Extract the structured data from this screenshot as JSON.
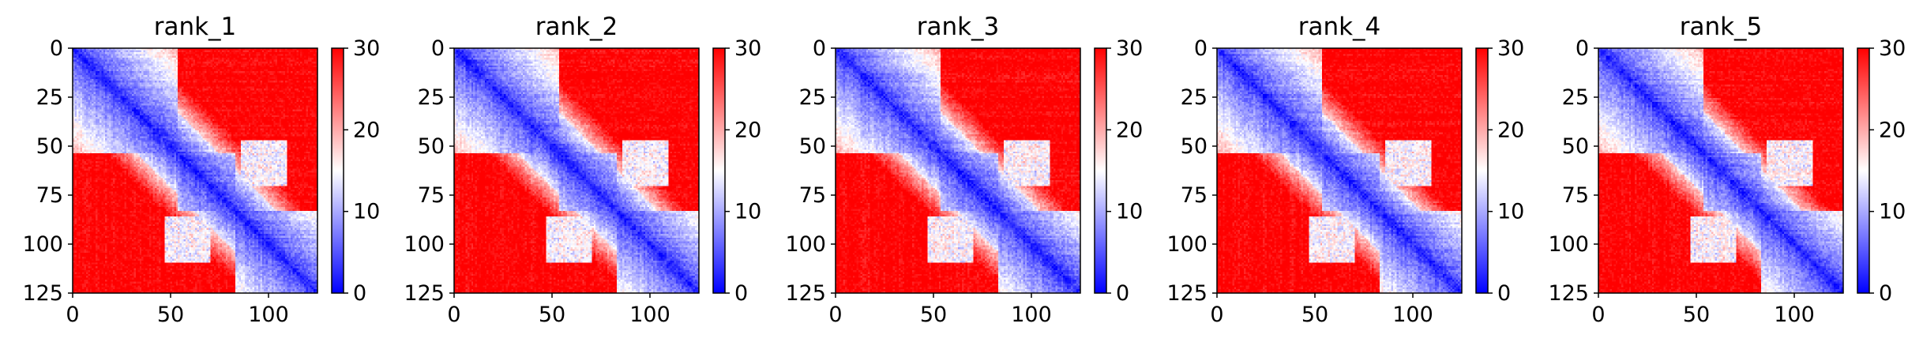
{
  "chart_data": [
    {
      "type": "heatmap",
      "title": "rank_1",
      "xlim": [
        0,
        125
      ],
      "ylim": [
        125,
        0
      ],
      "xticks": [
        "0",
        "50",
        "100"
      ],
      "yticks": [
        "0",
        "25",
        "50",
        "75",
        "100",
        "125"
      ],
      "colorbar": {
        "ticks": [
          "0",
          "10",
          "20",
          "30"
        ],
        "range": [
          0,
          30
        ]
      },
      "grid": false,
      "matrix_size": 128,
      "description_values": {
        "diagonal": 0,
        "background": 30,
        "domains": [
          [
            0,
            55
          ],
          [
            55,
            85
          ],
          [
            85,
            128
          ]
        ]
      }
    },
    {
      "type": "heatmap",
      "title": "rank_2",
      "xlim": [
        0,
        125
      ],
      "ylim": [
        125,
        0
      ],
      "xticks": [
        "0",
        "50",
        "100"
      ],
      "yticks": [
        "0",
        "25",
        "50",
        "75",
        "100",
        "125"
      ],
      "colorbar": {
        "ticks": [
          "0",
          "10",
          "20",
          "30"
        ],
        "range": [
          0,
          30
        ]
      },
      "grid": false,
      "matrix_size": 128,
      "description_values": {
        "diagonal": 0,
        "background": 30,
        "domains": [
          [
            0,
            55
          ],
          [
            55,
            85
          ],
          [
            85,
            128
          ]
        ]
      }
    },
    {
      "type": "heatmap",
      "title": "rank_3",
      "xlim": [
        0,
        125
      ],
      "ylim": [
        125,
        0
      ],
      "xticks": [
        "0",
        "50",
        "100"
      ],
      "yticks": [
        "0",
        "25",
        "50",
        "75",
        "100",
        "125"
      ],
      "colorbar": {
        "ticks": [
          "0",
          "10",
          "20",
          "30"
        ],
        "range": [
          0,
          30
        ]
      },
      "grid": false,
      "matrix_size": 128,
      "description_values": {
        "diagonal": 0,
        "background": 30,
        "domains": [
          [
            0,
            55
          ],
          [
            55,
            85
          ],
          [
            85,
            128
          ]
        ]
      }
    },
    {
      "type": "heatmap",
      "title": "rank_4",
      "xlim": [
        0,
        125
      ],
      "ylim": [
        125,
        0
      ],
      "xticks": [
        "0",
        "50",
        "100"
      ],
      "yticks": [
        "0",
        "25",
        "50",
        "75",
        "100",
        "125"
      ],
      "colorbar": {
        "ticks": [
          "0",
          "10",
          "20",
          "30"
        ],
        "range": [
          0,
          30
        ]
      },
      "grid": false,
      "matrix_size": 128,
      "description_values": {
        "diagonal": 0,
        "background": 30,
        "domains": [
          [
            0,
            55
          ],
          [
            55,
            85
          ],
          [
            85,
            128
          ]
        ]
      }
    },
    {
      "type": "heatmap",
      "title": "rank_5",
      "xlim": [
        0,
        125
      ],
      "ylim": [
        125,
        0
      ],
      "xticks": [
        "0",
        "50",
        "100"
      ],
      "yticks": [
        "0",
        "25",
        "50",
        "75",
        "100",
        "125"
      ],
      "colorbar": {
        "ticks": [
          "0",
          "10",
          "20",
          "30"
        ],
        "range": [
          0,
          30
        ]
      },
      "grid": false,
      "matrix_size": 128,
      "description_values": {
        "diagonal": 0,
        "background": 30,
        "domains": [
          [
            0,
            55
          ],
          [
            55,
            85
          ],
          [
            85,
            128
          ]
        ]
      }
    }
  ],
  "colors": {
    "low": "#0000ff",
    "mid": "#ffffff",
    "high": "#ff0000"
  }
}
